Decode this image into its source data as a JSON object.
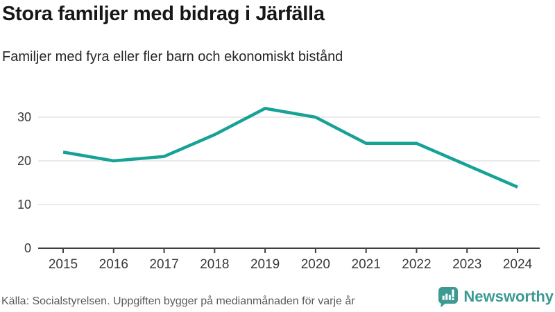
{
  "header": {
    "title": "Stora familjer med bidrag i Järfälla",
    "subtitle": "Familjer med fyra eller fler barn och ekonomiskt bistånd"
  },
  "footer": {
    "source": "Källa: Socialstyrelsen. Uppgiften bygger på medianmånaden för varje år",
    "brand": "Newsworthy"
  },
  "colors": {
    "line": "#16a296",
    "grid": "#e4e4e4",
    "axis": "#3f3f3f",
    "tick_label": "#383838",
    "title": "#171717",
    "subtitle": "#262626",
    "source": "#5a5a5a",
    "brand": "#3b9a91"
  },
  "chart_data": {
    "type": "line",
    "x": [
      "2015",
      "2016",
      "2017",
      "2018",
      "2019",
      "2020",
      "2021",
      "2022",
      "2023",
      "2024"
    ],
    "values": [
      22,
      20,
      21,
      26,
      32,
      30,
      24,
      24,
      19,
      14
    ],
    "series_name": "Familjer med fyra eller fler barn och ekonomiskt bistånd",
    "title": "Stora familjer med bidrag i Järfälla",
    "subtitle": "Familjer med fyra eller fler barn och ekonomiskt bistånd",
    "xlabel": "",
    "ylabel": "",
    "ylim": [
      0,
      34
    ],
    "yticks": [
      0,
      10,
      20,
      30
    ],
    "grid": "horizontal-only",
    "legend": "none",
    "line_color": "#16a296"
  }
}
